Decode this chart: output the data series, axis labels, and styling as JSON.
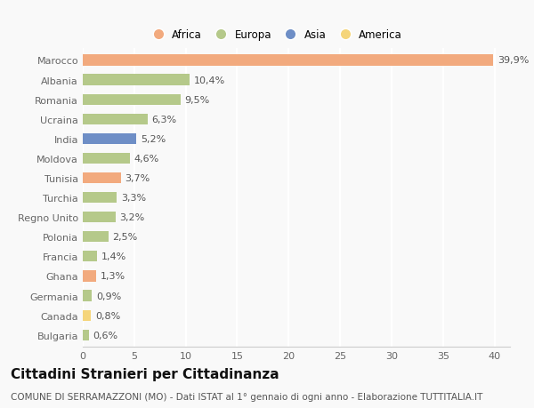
{
  "categories": [
    "Bulgaria",
    "Canada",
    "Germania",
    "Ghana",
    "Francia",
    "Polonia",
    "Regno Unito",
    "Turchia",
    "Tunisia",
    "Moldova",
    "India",
    "Ucraina",
    "Romania",
    "Albania",
    "Marocco"
  ],
  "values": [
    0.6,
    0.8,
    0.9,
    1.3,
    1.4,
    2.5,
    3.2,
    3.3,
    3.7,
    4.6,
    5.2,
    6.3,
    9.5,
    10.4,
    39.9
  ],
  "labels": [
    "0,6%",
    "0,8%",
    "0,9%",
    "1,3%",
    "1,4%",
    "2,5%",
    "3,2%",
    "3,3%",
    "3,7%",
    "4,6%",
    "5,2%",
    "6,3%",
    "9,5%",
    "10,4%",
    "39,9%"
  ],
  "continents": [
    "Europa",
    "America",
    "Europa",
    "Africa",
    "Europa",
    "Europa",
    "Europa",
    "Europa",
    "Africa",
    "Europa",
    "Asia",
    "Europa",
    "Europa",
    "Europa",
    "Africa"
  ],
  "colors": {
    "Africa": "#F2AA7E",
    "Europa": "#B5C98A",
    "Asia": "#6E8EC6",
    "America": "#F5D57A"
  },
  "legend_order": [
    "Africa",
    "Europa",
    "Asia",
    "America"
  ],
  "xlim": [
    0,
    41.5
  ],
  "xticks": [
    0,
    5,
    10,
    15,
    20,
    25,
    30,
    35,
    40
  ],
  "title": "Cittadini Stranieri per Cittadinanza",
  "subtitle": "COMUNE DI SERRAMAZZONI (MO) - Dati ISTAT al 1° gennaio di ogni anno - Elaborazione TUTTITALIA.IT",
  "background_color": "#f9f9f9",
  "grid_color": "#ffffff",
  "bar_height": 0.55,
  "title_fontsize": 11,
  "subtitle_fontsize": 7.5,
  "tick_fontsize": 8,
  "label_fontsize": 8
}
